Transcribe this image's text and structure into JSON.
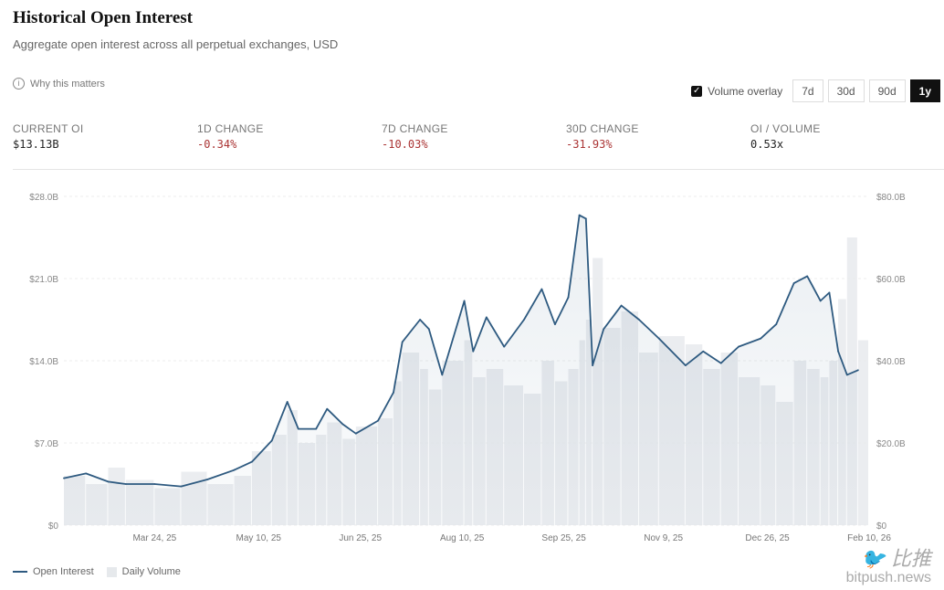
{
  "header": {
    "title": "Historical Open Interest",
    "subtitle": "Aggregate open interest across all perpetual exchanges, USD",
    "why_label": "Why this matters"
  },
  "controls": {
    "volume_overlay_label": "Volume overlay",
    "volume_overlay_checked": true,
    "ranges": [
      "7d",
      "30d",
      "90d",
      "1y"
    ],
    "active_range": "1y"
  },
  "stats": [
    {
      "label": "CURRENT OI",
      "value": "$13.13B",
      "tone": "neutral"
    },
    {
      "label": "1D CHANGE",
      "value": "-0.34%",
      "tone": "negative"
    },
    {
      "label": "7D CHANGE",
      "value": "-10.03%",
      "tone": "negative"
    },
    {
      "label": "30D CHANGE",
      "value": "-31.93%",
      "tone": "negative"
    },
    {
      "label": "OI / VOLUME",
      "value": "0.53x",
      "tone": "neutral"
    }
  ],
  "colors": {
    "oi_line": "#2e5a80",
    "volume": "#e6e9ec",
    "negative": "#aa3333",
    "active": "#111111"
  },
  "watermark": {
    "cn": "比推",
    "en": "bitpush.news"
  },
  "chart_data": {
    "type": "line",
    "x_range": [
      "2025-02-11",
      "2026-02-10"
    ],
    "x_ticks": [
      "Mar 24, 25",
      "May 10, 25",
      "Jun 25, 25",
      "Aug 10, 25",
      "Sep 25, 25",
      "Nov 9, 25",
      "Dec 26, 25",
      "Feb 10, 26"
    ],
    "x_tick_dates": [
      "2025-03-24",
      "2025-05-10",
      "2025-06-25",
      "2025-08-10",
      "2025-09-25",
      "2025-11-09",
      "2025-12-26",
      "2026-02-10"
    ],
    "y_left": {
      "ticks": [
        "$0",
        "$7.0B",
        "$14.0B",
        "$21.0B",
        "$28.0B"
      ],
      "range": [
        0,
        28
      ]
    },
    "y_right": {
      "ticks": [
        "$0",
        "$20.0B",
        "$40.0B",
        "$60.0B",
        "$80.0B"
      ],
      "range": [
        0,
        80
      ]
    },
    "grid": true,
    "legend": {
      "position": "bottom-left",
      "items": [
        "Open Interest",
        "Daily Volume"
      ]
    },
    "series": [
      {
        "name": "Open Interest",
        "unit": "B USD",
        "points": [
          [
            "2025-02-11",
            4.0
          ],
          [
            "2025-02-21",
            4.4
          ],
          [
            "2025-03-03",
            3.7
          ],
          [
            "2025-03-11",
            3.5
          ],
          [
            "2025-03-24",
            3.5
          ],
          [
            "2025-04-05",
            3.3
          ],
          [
            "2025-04-17",
            3.9
          ],
          [
            "2025-04-29",
            4.7
          ],
          [
            "2025-05-07",
            5.4
          ],
          [
            "2025-05-16",
            7.2
          ],
          [
            "2025-05-23",
            10.5
          ],
          [
            "2025-05-28",
            8.2
          ],
          [
            "2025-06-05",
            8.2
          ],
          [
            "2025-06-10",
            9.9
          ],
          [
            "2025-06-17",
            8.6
          ],
          [
            "2025-06-23",
            7.8
          ],
          [
            "2025-07-03",
            8.9
          ],
          [
            "2025-07-10",
            11.3
          ],
          [
            "2025-07-14",
            15.6
          ],
          [
            "2025-07-22",
            17.5
          ],
          [
            "2025-07-26",
            16.7
          ],
          [
            "2025-08-01",
            12.8
          ],
          [
            "2025-08-11",
            19.1
          ],
          [
            "2025-08-15",
            14.8
          ],
          [
            "2025-08-21",
            17.7
          ],
          [
            "2025-08-29",
            15.2
          ],
          [
            "2025-09-07",
            17.5
          ],
          [
            "2025-09-15",
            20.1
          ],
          [
            "2025-09-21",
            17.1
          ],
          [
            "2025-09-27",
            19.4
          ],
          [
            "2025-10-02",
            26.4
          ],
          [
            "2025-10-05",
            26.1
          ],
          [
            "2025-10-08",
            13.6
          ],
          [
            "2025-10-13",
            16.7
          ],
          [
            "2025-10-21",
            18.7
          ],
          [
            "2025-10-29",
            17.5
          ],
          [
            "2025-11-07",
            15.9
          ],
          [
            "2025-11-19",
            13.6
          ],
          [
            "2025-11-27",
            14.8
          ],
          [
            "2025-12-05",
            13.8
          ],
          [
            "2025-12-13",
            15.2
          ],
          [
            "2025-12-23",
            15.9
          ],
          [
            "2025-12-30",
            17.1
          ],
          [
            "2026-01-07",
            20.6
          ],
          [
            "2026-01-13",
            21.2
          ],
          [
            "2026-01-19",
            19.1
          ],
          [
            "2026-01-23",
            19.8
          ],
          [
            "2026-01-27",
            14.8
          ],
          [
            "2026-01-31",
            12.8
          ],
          [
            "2026-02-05",
            13.2
          ]
        ]
      },
      {
        "name": "Daily Volume",
        "unit": "B USD",
        "points": [
          [
            "2025-02-11",
            12
          ],
          [
            "2025-02-21",
            10
          ],
          [
            "2025-03-03",
            14
          ],
          [
            "2025-03-11",
            11
          ],
          [
            "2025-03-24",
            9
          ],
          [
            "2025-04-05",
            13
          ],
          [
            "2025-04-17",
            10
          ],
          [
            "2025-04-29",
            12
          ],
          [
            "2025-05-07",
            18
          ],
          [
            "2025-05-16",
            22
          ],
          [
            "2025-05-23",
            28
          ],
          [
            "2025-05-28",
            20
          ],
          [
            "2025-06-05",
            22
          ],
          [
            "2025-06-10",
            25
          ],
          [
            "2025-06-17",
            21
          ],
          [
            "2025-06-23",
            24
          ],
          [
            "2025-07-03",
            26
          ],
          [
            "2025-07-10",
            35
          ],
          [
            "2025-07-14",
            42
          ],
          [
            "2025-07-22",
            38
          ],
          [
            "2025-07-26",
            33
          ],
          [
            "2025-08-01",
            40
          ],
          [
            "2025-08-11",
            45
          ],
          [
            "2025-08-15",
            36
          ],
          [
            "2025-08-21",
            38
          ],
          [
            "2025-08-29",
            34
          ],
          [
            "2025-09-07",
            32
          ],
          [
            "2025-09-15",
            40
          ],
          [
            "2025-09-21",
            35
          ],
          [
            "2025-09-27",
            38
          ],
          [
            "2025-10-02",
            45
          ],
          [
            "2025-10-05",
            50
          ],
          [
            "2025-10-08",
            65
          ],
          [
            "2025-10-13",
            48
          ],
          [
            "2025-10-21",
            52
          ],
          [
            "2025-10-29",
            42
          ],
          [
            "2025-11-07",
            46
          ],
          [
            "2025-11-19",
            44
          ],
          [
            "2025-11-27",
            38
          ],
          [
            "2025-12-05",
            42
          ],
          [
            "2025-12-13",
            36
          ],
          [
            "2025-12-23",
            34
          ],
          [
            "2025-12-30",
            30
          ],
          [
            "2026-01-07",
            40
          ],
          [
            "2026-01-13",
            38
          ],
          [
            "2026-01-19",
            36
          ],
          [
            "2026-01-23",
            40
          ],
          [
            "2026-01-27",
            55
          ],
          [
            "2026-01-31",
            70
          ],
          [
            "2026-02-05",
            45
          ]
        ]
      }
    ]
  }
}
